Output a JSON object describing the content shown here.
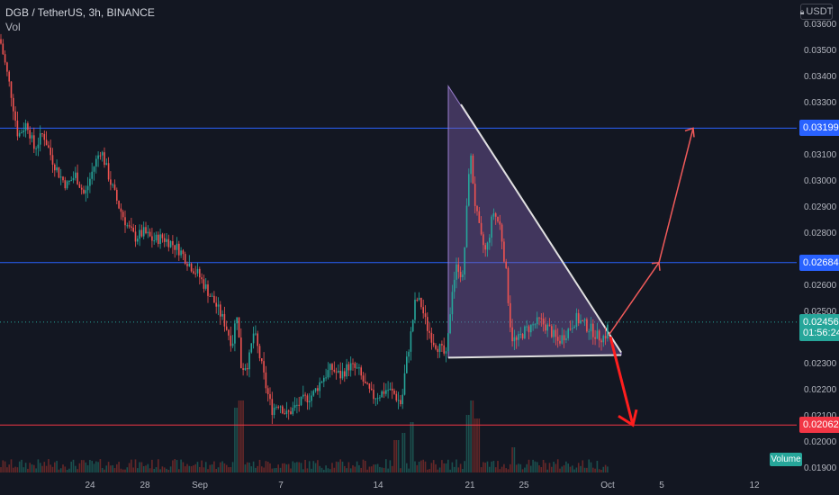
{
  "header": {
    "symbol": "DGB / TetherUS, 3h, BINANCE",
    "volume_label": "Vol"
  },
  "currency_button": {
    "label": "USDT",
    "icon": "lock-icon"
  },
  "volume_tag": "Volume",
  "colors": {
    "background": "#131722",
    "up": "#26a69a",
    "down": "#ef5350",
    "blue_level": "#2962ff",
    "red_level": "#f23645",
    "triangle_fill": "#7b5ea7",
    "grid_text": "#b2b5be"
  },
  "price_tags": [
    {
      "label": "0.03199",
      "price": 0.03199,
      "color": "#2962ff"
    },
    {
      "label": "0.02684",
      "price": 0.02684,
      "color": "#2962ff"
    },
    {
      "label": "0.02456",
      "price": 0.02456,
      "color": "#26a69a"
    },
    {
      "label": "01:56:24",
      "price": 0.02413,
      "color": "#26a69a"
    },
    {
      "label": "0.02062",
      "price": 0.02062,
      "color": "#f23645"
    }
  ],
  "chart_data": {
    "type": "candlestick",
    "y_axis": {
      "ticks": [
        "0.03600",
        "0.03500",
        "0.03400",
        "0.03300",
        "0.03100",
        "0.03000",
        "0.02900",
        "0.02800",
        "0.02600",
        "0.02500",
        "0.02300",
        "0.02200",
        "0.02100",
        "0.02000",
        "0.01900"
      ],
      "range": [
        0.0188,
        0.0369
      ]
    },
    "x_axis": {
      "ticks": [
        "24",
        "28",
        "Sep",
        "7",
        "14",
        "21",
        "25",
        "Oct",
        "5",
        "12"
      ]
    },
    "horizontal_levels": [
      {
        "price": 0.03199,
        "color": "blue"
      },
      {
        "price": 0.02684,
        "color": "blue"
      },
      {
        "price": 0.02062,
        "color": "red"
      }
    ],
    "current_price": 0.02456,
    "triangle_pattern": {
      "upper_start": 0.0336,
      "apex": 0.0234,
      "base": 0.0232
    },
    "projections": [
      {
        "direction": "up",
        "targets": [
          0.02684,
          0.03199
        ]
      },
      {
        "direction": "down",
        "target": 0.02062
      }
    ],
    "price_path": [
      [
        0,
        0.0354
      ],
      [
        12,
        0.0334
      ],
      [
        20,
        0.0317
      ],
      [
        30,
        0.0322
      ],
      [
        38,
        0.0312
      ],
      [
        48,
        0.0318
      ],
      [
        58,
        0.0308
      ],
      [
        66,
        0.0302
      ],
      [
        74,
        0.0298
      ],
      [
        84,
        0.0302
      ],
      [
        94,
        0.0294
      ],
      [
        104,
        0.0305
      ],
      [
        112,
        0.0312
      ],
      [
        122,
        0.03
      ],
      [
        132,
        0.029
      ],
      [
        142,
        0.0282
      ],
      [
        150,
        0.0278
      ],
      [
        160,
        0.028
      ],
      [
        170,
        0.0277
      ],
      [
        180,
        0.0278
      ],
      [
        190,
        0.0276
      ],
      [
        200,
        0.0273
      ],
      [
        210,
        0.0268
      ],
      [
        220,
        0.0264
      ],
      [
        230,
        0.0258
      ],
      [
        240,
        0.0252
      ],
      [
        250,
        0.0245
      ],
      [
        258,
        0.0237
      ],
      [
        263,
        0.025
      ],
      [
        268,
        0.0228
      ],
      [
        276,
        0.023
      ],
      [
        282,
        0.0242
      ],
      [
        290,
        0.023
      ],
      [
        296,
        0.022
      ],
      [
        302,
        0.0212
      ],
      [
        310,
        0.0215
      ],
      [
        318,
        0.021
      ],
      [
        328,
        0.0213
      ],
      [
        338,
        0.0216
      ],
      [
        348,
        0.0218
      ],
      [
        358,
        0.0224
      ],
      [
        368,
        0.0228
      ],
      [
        378,
        0.0225
      ],
      [
        388,
        0.0229
      ],
      [
        398,
        0.0227
      ],
      [
        406,
        0.0221
      ],
      [
        414,
        0.0217
      ],
      [
        422,
        0.0218
      ],
      [
        430,
        0.022
      ],
      [
        438,
        0.0218
      ],
      [
        446,
        0.0214
      ],
      [
        450,
        0.0227
      ],
      [
        456,
        0.024
      ],
      [
        462,
        0.0255
      ],
      [
        468,
        0.0252
      ],
      [
        474,
        0.0244
      ],
      [
        482,
        0.0238
      ],
      [
        490,
        0.0235
      ],
      [
        496,
        0.0232
      ],
      [
        502,
        0.0258
      ],
      [
        508,
        0.0268
      ],
      [
        514,
        0.0262
      ],
      [
        518,
        0.0285
      ],
      [
        522,
        0.0312
      ],
      [
        528,
        0.029
      ],
      [
        534,
        0.0278
      ],
      [
        540,
        0.0272
      ],
      [
        548,
        0.0288
      ],
      [
        556,
        0.0282
      ],
      [
        562,
        0.0265
      ],
      [
        568,
        0.024
      ],
      [
        574,
        0.0238
      ],
      [
        582,
        0.0242
      ],
      [
        590,
        0.0244
      ],
      [
        600,
        0.0246
      ],
      [
        610,
        0.0243
      ],
      [
        620,
        0.0238
      ],
      [
        630,
        0.0242
      ],
      [
        640,
        0.0247
      ],
      [
        648,
        0.0245
      ],
      [
        656,
        0.0243
      ],
      [
        664,
        0.024
      ],
      [
        672,
        0.024
      ],
      [
        676,
        0.0245
      ]
    ],
    "volume_spikes": [
      [
        262,
        0.9
      ],
      [
        268,
        1.0
      ],
      [
        440,
        0.45
      ],
      [
        448,
        0.55
      ],
      [
        458,
        0.7
      ],
      [
        520,
        0.8
      ],
      [
        524,
        1.0
      ],
      [
        530,
        0.75
      ],
      [
        570,
        0.35
      ]
    ]
  }
}
